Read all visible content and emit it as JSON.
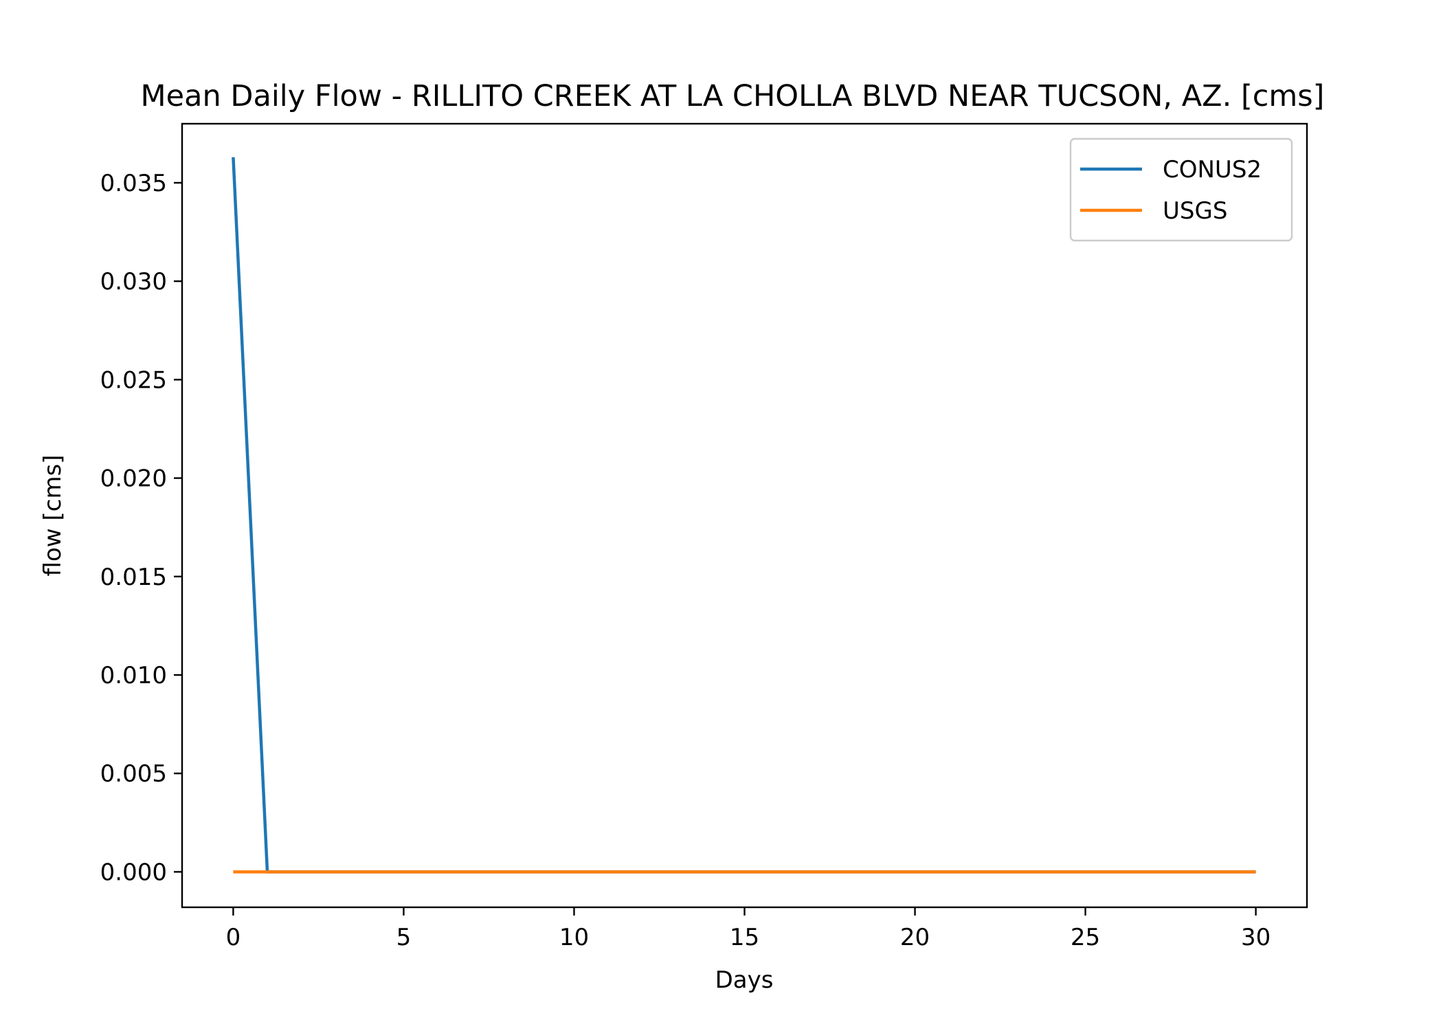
{
  "chart_data": {
    "type": "line",
    "title": "Mean Daily Flow - RILLITO CREEK AT LA CHOLLA BLVD NEAR TUCSON, AZ. [cms]",
    "xlabel": "Days",
    "ylabel": "flow [cms]",
    "xlim": [
      -1.5,
      31.5
    ],
    "ylim": [
      -0.0018,
      0.038
    ],
    "xticks": [
      0,
      5,
      10,
      15,
      20,
      25,
      30
    ],
    "xtick_labels": [
      "0",
      "5",
      "10",
      "15",
      "20",
      "25",
      "30"
    ],
    "yticks": [
      0.0,
      0.005,
      0.01,
      0.015,
      0.02,
      0.025,
      0.03,
      0.035
    ],
    "ytick_labels": [
      "0.000",
      "0.005",
      "0.010",
      "0.015",
      "0.020",
      "0.025",
      "0.030",
      "0.035"
    ],
    "grid": false,
    "legend_position": "top-right",
    "series": [
      {
        "name": "CONUS2",
        "color": "#1f77b4",
        "x": [
          0,
          1,
          2,
          3,
          4,
          5,
          6,
          7,
          8,
          9,
          10,
          11,
          12,
          13,
          14,
          15,
          16,
          17,
          18,
          19,
          20,
          21,
          22,
          23,
          24,
          25,
          26,
          27,
          28,
          29,
          30
        ],
        "y": [
          0.0363,
          0.0,
          0.0,
          0.0,
          0.0,
          0.0,
          0.0,
          0.0,
          0.0,
          0.0,
          0.0,
          0.0,
          0.0,
          0.0,
          0.0,
          0.0,
          0.0,
          0.0,
          0.0,
          0.0,
          0.0,
          0.0,
          0.0,
          0.0,
          0.0,
          0.0,
          0.0,
          0.0,
          0.0,
          0.0,
          0.0
        ]
      },
      {
        "name": "USGS",
        "color": "#ff7f0e",
        "x": [
          0,
          1,
          2,
          3,
          4,
          5,
          6,
          7,
          8,
          9,
          10,
          11,
          12,
          13,
          14,
          15,
          16,
          17,
          18,
          19,
          20,
          21,
          22,
          23,
          24,
          25,
          26,
          27,
          28,
          29,
          30
        ],
        "y": [
          0.0,
          0.0,
          0.0,
          0.0,
          0.0,
          0.0,
          0.0,
          0.0,
          0.0,
          0.0,
          0.0,
          0.0,
          0.0,
          0.0,
          0.0,
          0.0,
          0.0,
          0.0,
          0.0,
          0.0,
          0.0,
          0.0,
          0.0,
          0.0,
          0.0,
          0.0,
          0.0,
          0.0,
          0.0,
          0.0,
          0.0
        ]
      }
    ]
  }
}
